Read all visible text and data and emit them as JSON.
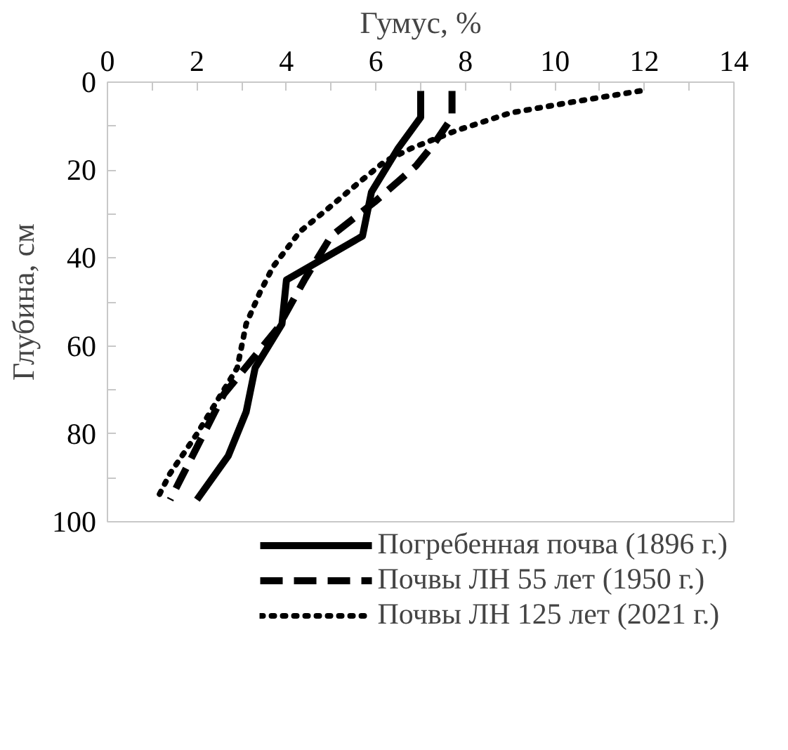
{
  "chart_data": {
    "type": "line",
    "xlabel": "Гумус, %",
    "ylabel": "Глубина, см",
    "xlim": [
      0,
      14
    ],
    "ylim": [
      100,
      0
    ],
    "xticks": [
      0,
      {
        "value": 1,
        "label": null
      },
      2,
      {
        "value": 3,
        "label": null
      },
      4,
      {
        "value": 5,
        "label": null
      },
      6,
      {
        "value": 7,
        "label": null
      },
      8,
      {
        "value": 9,
        "label": null
      },
      10,
      {
        "value": 11,
        "label": null
      },
      12,
      {
        "value": 13,
        "label": null
      },
      14
    ],
    "yticks": [
      0,
      {
        "value": 10,
        "label": null
      },
      20,
      {
        "value": 30,
        "label": null
      },
      40,
      {
        "value": 50,
        "label": null
      },
      60,
      {
        "value": 70,
        "label": null
      },
      80,
      {
        "value": 90,
        "label": null
      },
      100
    ],
    "legend": "bottom",
    "marker": "none",
    "series": [
      {
        "name": "Погребенная почва (1896 г.)",
        "color": "#000000",
        "line_style": "solid",
        "x": [
          7.0,
          7.0,
          6.5,
          5.9,
          5.7,
          4.0,
          3.9,
          3.3,
          3.1,
          2.7,
          2.0
        ],
        "values": [
          2,
          8,
          15,
          25,
          35,
          45,
          55,
          65,
          75,
          85,
          95
        ]
      },
      {
        "name": "Почвы ЛН 55 лет (1950 г.)",
        "color": "#000000",
        "line_style": "dashed",
        "x": [
          7.7,
          7.7,
          7.3,
          6.9,
          6.0,
          5.5,
          5.0,
          4.7,
          4.4,
          3.8,
          3.4,
          2.6,
          1.8,
          1.4
        ],
        "values": [
          2,
          8,
          14,
          19,
          27,
          31,
          35,
          40,
          45,
          56,
          61,
          71,
          87,
          95
        ]
      },
      {
        "name": "Почвы ЛН 125 лет (2021 г.)",
        "color": "#000000",
        "line_style": "dotted",
        "x": [
          11.9,
          10.4,
          9.0,
          7.8,
          6.8,
          6.2,
          5.6,
          4.9,
          4.3,
          3.7,
          3.4,
          3.1,
          2.9,
          2.0,
          1.4,
          1.1
        ],
        "values": [
          2,
          4.5,
          7,
          11,
          15,
          18,
          23,
          29,
          34,
          42,
          48,
          55,
          65,
          80,
          89,
          95
        ]
      }
    ]
  }
}
